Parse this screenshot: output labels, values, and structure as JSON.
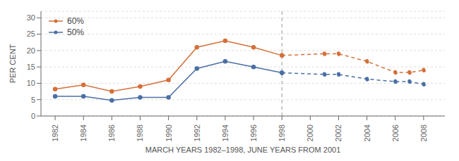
{
  "chart_data": {
    "type": "line",
    "xlabel": "MARCH YEARS 1982–1998, JUNE YEARS FROM 2001",
    "ylabel": "PER CENT",
    "xlim": [
      1981,
      2009.5
    ],
    "xticks": [
      1982,
      1984,
      1986,
      1988,
      1990,
      1992,
      1994,
      1996,
      1998,
      2000,
      2002,
      2004,
      2006,
      2008
    ],
    "ylim": [
      0,
      32
    ],
    "yticks": [
      0,
      5,
      10,
      15,
      20,
      25,
      30
    ],
    "grid": true,
    "legend": "upper left",
    "vlines": [
      1998
    ],
    "series": [
      {
        "name": "60%",
        "color": "#D4703A",
        "marker": "circle",
        "line_style": "solid",
        "x": [
          1982,
          1984,
          1986,
          1988,
          1990,
          1992,
          1994,
          1996,
          1998
        ],
        "values": [
          8.2,
          9.5,
          7.5,
          9.0,
          11.0,
          21.0,
          23.0,
          21.0,
          18.5
        ]
      },
      {
        "name": "50%",
        "color": "#4A6FA5",
        "marker": "circle",
        "line_style": "solid",
        "x": [
          1982,
          1984,
          1986,
          1988,
          1990,
          1992,
          1994,
          1996,
          1998
        ],
        "values": [
          6.0,
          6.0,
          4.8,
          5.7,
          5.7,
          14.5,
          16.7,
          15.0,
          13.2
        ]
      },
      {
        "name": "60%",
        "color": "#D4703A",
        "marker": "circle",
        "line_style": "dashed",
        "x": [
          1998,
          2001,
          2002,
          2004,
          2006,
          2007,
          2008
        ],
        "values": [
          18.5,
          19.0,
          19.0,
          16.7,
          13.3,
          13.3,
          14.0
        ]
      },
      {
        "name": "50%",
        "color": "#4A6FA5",
        "marker": "circle",
        "line_style": "dashed",
        "x": [
          1998,
          2001,
          2002,
          2004,
          2006,
          2007,
          2008
        ],
        "values": [
          13.2,
          12.7,
          12.7,
          11.3,
          10.5,
          10.5,
          9.7
        ]
      }
    ]
  }
}
